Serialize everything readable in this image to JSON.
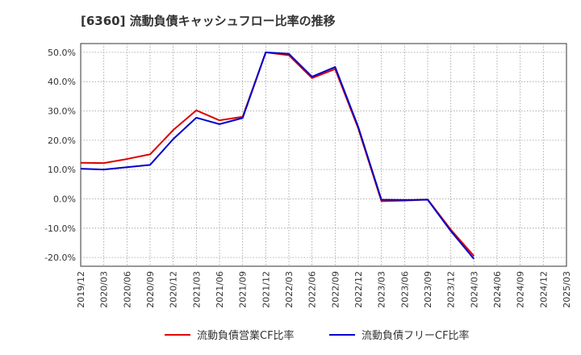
{
  "chart_data": {
    "type": "line",
    "title": "[6360]  流動負債キャッシュフロー比率の推移",
    "xlabel": "",
    "ylabel": "",
    "ylim": [
      -23,
      53
    ],
    "yticks": [
      -20,
      -10,
      0,
      10,
      20,
      30,
      40,
      50
    ],
    "ytick_labels": [
      "-20.0%",
      "-10.0%",
      "0.0%",
      "10.0%",
      "20.0%",
      "30.0%",
      "40.0%",
      "50.0%"
    ],
    "categories": [
      "2019/12",
      "2020/03",
      "2020/06",
      "2020/09",
      "2020/12",
      "2021/03",
      "2021/06",
      "2021/09",
      "2021/12",
      "2022/03",
      "2022/06",
      "2022/09",
      "2022/12",
      "2023/03",
      "2023/06",
      "2023/09",
      "2023/12",
      "2024/03",
      "2024/06",
      "2024/09",
      "2024/12",
      "2025/03"
    ],
    "series": [
      {
        "name": "流動負債営業CF比率",
        "color": "#dd0000",
        "values": [
          12.3,
          12.2,
          13.6,
          15.2,
          23.5,
          30.2,
          26.8,
          28.0,
          50.0,
          49.0,
          41.2,
          44.3,
          24.0,
          -0.8,
          -0.6,
          -0.2,
          -10.5,
          -19.5,
          null,
          null,
          null,
          null
        ]
      },
      {
        "name": "流動負債フリーCF比率",
        "color": "#0000cc",
        "values": [
          10.3,
          10.0,
          10.8,
          11.6,
          20.4,
          27.7,
          25.5,
          27.6,
          50.0,
          49.5,
          41.7,
          45.0,
          24.5,
          -0.3,
          -0.4,
          -0.3,
          -11.0,
          -20.5,
          null,
          null,
          null,
          null
        ]
      }
    ],
    "legend": "bottom",
    "grid": true
  }
}
